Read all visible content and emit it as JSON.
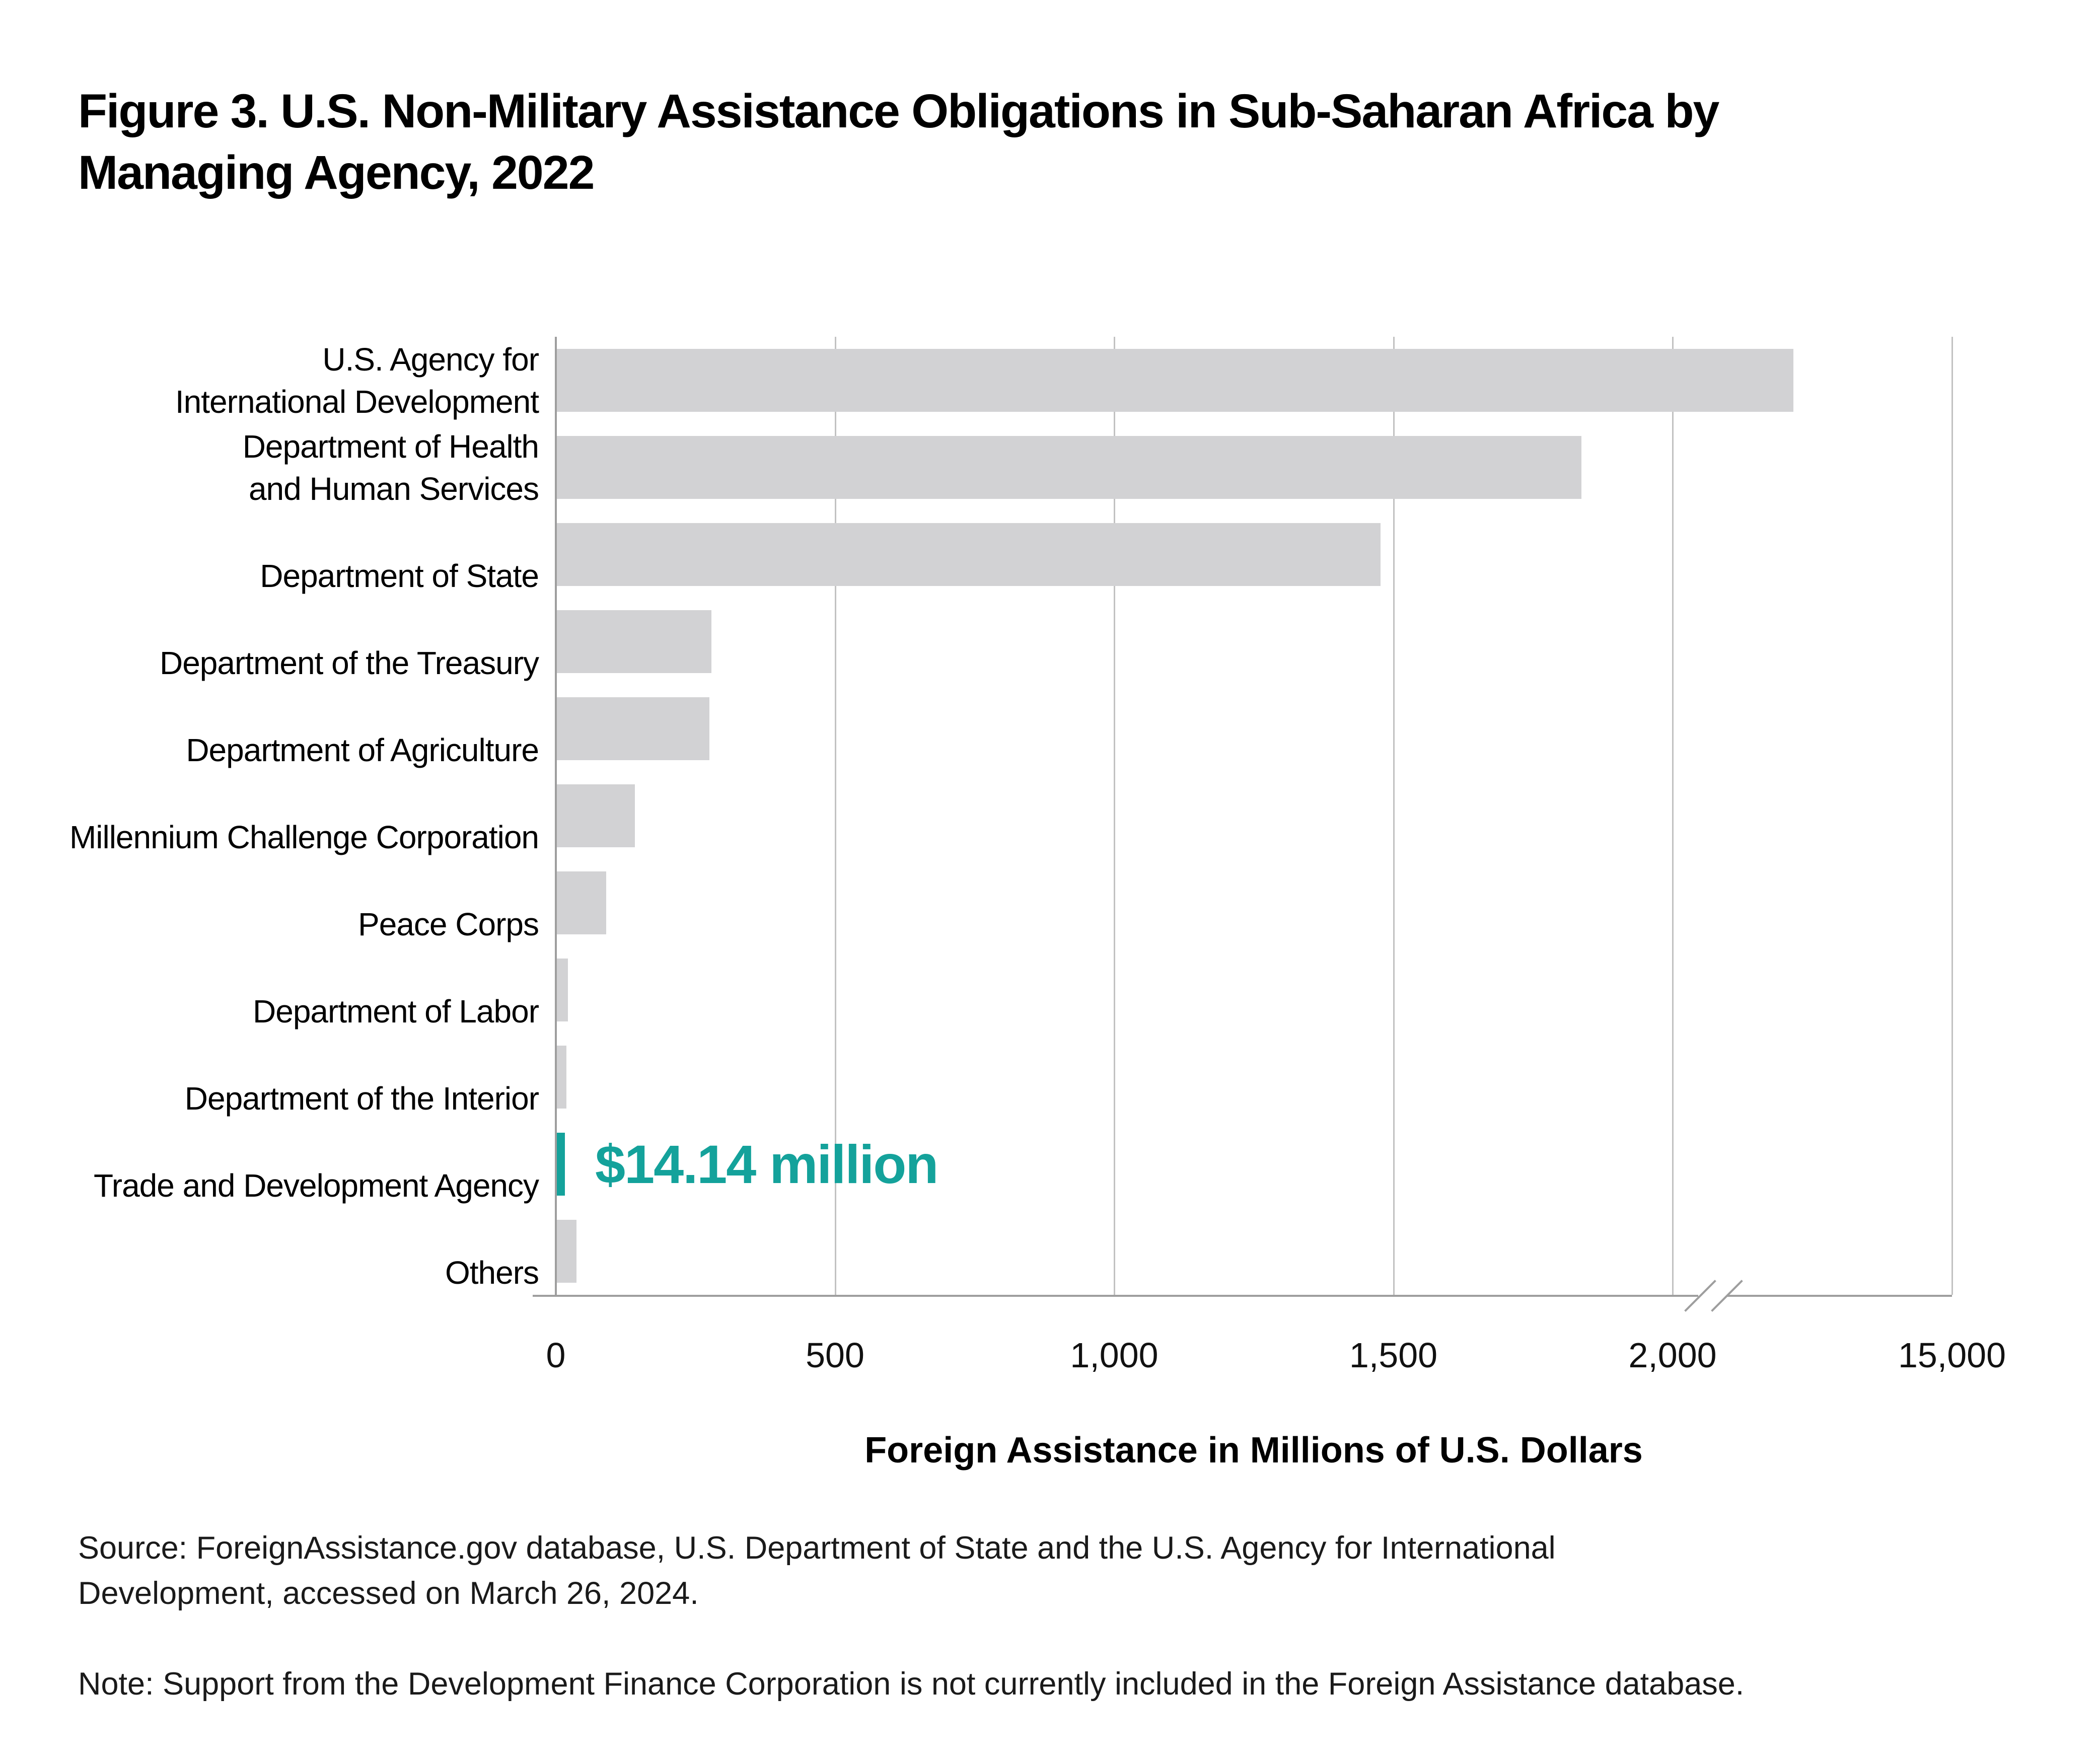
{
  "figure": {
    "title_lines": [
      "Figure 3. U.S. Non-Military Assistance Obligations in Sub-Saharan Africa by",
      "Managing Agency, 2022"
    ],
    "source_lines": [
      "Source: ForeignAssistance.gov database, U.S. Department of State and the U.S. Agency for International",
      "Development, accessed on March 26, 2024."
    ],
    "note": "Note: Support from the Development Finance Corporation is not currently included in the Foreign Assistance database."
  },
  "colors": {
    "bar": "#d2d2d4",
    "highlight": "#14a29b",
    "axis": "#9e9e9e",
    "grid": "#c2c2c2",
    "text": "#000000"
  },
  "chart_data": {
    "type": "bar",
    "orientation": "horizontal",
    "title": "Figure 3. U.S. Non-Military Assistance Obligations in Sub-Saharan Africa by Managing Agency, 2022",
    "xlabel": "Foreign Assistance in Millions of U.S. Dollars",
    "ylabel": "",
    "grid": "vertical",
    "axis_break_between": [
      2000,
      15000
    ],
    "xlim_linear_segment": [
      0,
      2000
    ],
    "x_ticks": [
      {
        "value": 0,
        "label": "0"
      },
      {
        "value": 500,
        "label": "500"
      },
      {
        "value": 1000,
        "label": "1,000"
      },
      {
        "value": 1500,
        "label": "1,500"
      },
      {
        "value": 2000,
        "label": "2,000"
      },
      {
        "value": 15000,
        "label": "15,000"
      }
    ],
    "categories": [
      {
        "label_lines": [
          "U.S. Agency for",
          "International Development"
        ],
        "value": 2215,
        "highlight": false
      },
      {
        "label_lines": [
          "Department of Health",
          "and Human Services"
        ],
        "value": 1835,
        "highlight": false
      },
      {
        "label_lines": [
          "Department of State"
        ],
        "value": 1475,
        "highlight": false
      },
      {
        "label_lines": [
          "Department of the Treasury"
        ],
        "value": 277,
        "highlight": false
      },
      {
        "label_lines": [
          "Department of Agriculture"
        ],
        "value": 273,
        "highlight": false
      },
      {
        "label_lines": [
          "Millennium Challenge Corporation"
        ],
        "value": 140,
        "highlight": false
      },
      {
        "label_lines": [
          "Peace Corps"
        ],
        "value": 88,
        "highlight": false
      },
      {
        "label_lines": [
          "Department of Labor"
        ],
        "value": 20,
        "highlight": false
      },
      {
        "label_lines": [
          "Department of the Interior"
        ],
        "value": 17,
        "highlight": false
      },
      {
        "label_lines": [
          "Trade and Development Agency"
        ],
        "value": 14.14,
        "highlight": true,
        "annotation": "$14.14 million"
      },
      {
        "label_lines": [
          "Others"
        ],
        "value": 35,
        "highlight": false
      }
    ],
    "units": "Millions of U.S. Dollars"
  }
}
